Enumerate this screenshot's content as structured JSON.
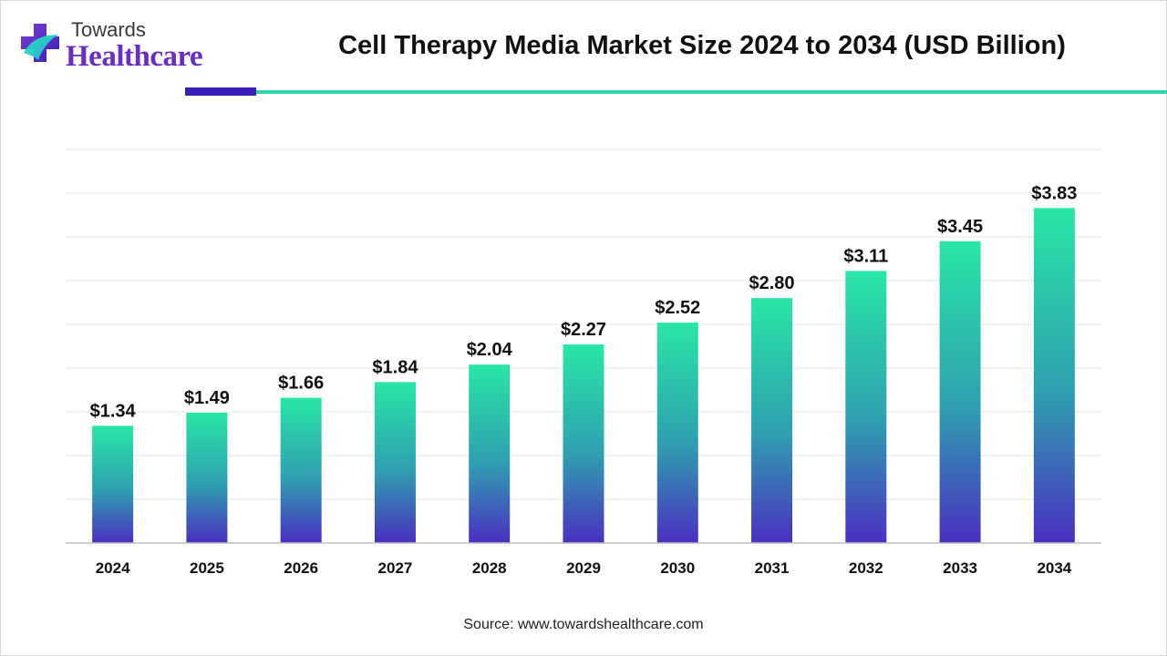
{
  "logo": {
    "top_text": "Towards",
    "bottom_text": "Healthcare",
    "icon": "plus-cross-logo-icon"
  },
  "title": "Cell Therapy Media Market Size 2024 to 2034 (USD Billion)",
  "source": "Source: www.towardshealthcare.com",
  "colors": {
    "bar_top": "#28e6a6",
    "bar_mid": "#2f9fb0",
    "bar_bottom": "#4a2fc0",
    "accent_purple": "#3b1fb8",
    "accent_teal": "#2ed4a8",
    "grid": "#e6e6e6",
    "axis": "#bfbfbf"
  },
  "chart_data": {
    "type": "bar",
    "categories": [
      "2024",
      "2025",
      "2026",
      "2027",
      "2028",
      "2029",
      "2030",
      "2031",
      "2032",
      "2033",
      "2034"
    ],
    "values": [
      1.34,
      1.49,
      1.66,
      1.84,
      2.04,
      2.27,
      2.52,
      2.8,
      3.11,
      3.45,
      3.83
    ],
    "data_labels": [
      "$1.34",
      "$1.49",
      "$1.66",
      "$1.84",
      "$2.04",
      "$2.27",
      "$2.52",
      "$2.80",
      "$3.11",
      "$3.45",
      "$3.83"
    ],
    "title": "Cell Therapy Media Market Size 2024 to 2034 (USD Billion)",
    "xlabel": "",
    "ylabel": "",
    "ylim": [
      0,
      4.5
    ],
    "grid": true,
    "legend": "none"
  }
}
